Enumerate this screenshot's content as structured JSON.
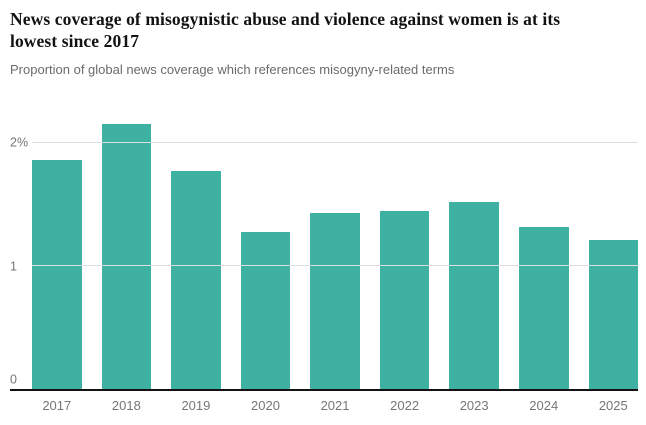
{
  "header": {
    "title": "News coverage of misogynistic abuse and violence against women is at its lowest since 2017",
    "subtitle": "Proportion of global news coverage which references misogyny-related terms"
  },
  "chart_data": {
    "type": "bar",
    "title": "News coverage of misogynistic abuse and violence against women is at its lowest since 2017",
    "subtitle": "Proportion of global news coverage which references misogyny-related terms",
    "categories": [
      "2017",
      "2018",
      "2019",
      "2020",
      "2021",
      "2022",
      "2023",
      "2024",
      "2025"
    ],
    "values": [
      1.86,
      2.15,
      1.77,
      1.28,
      1.43,
      1.45,
      1.52,
      1.32,
      1.21
    ],
    "xlabel": "",
    "ylabel": "",
    "unit": "%",
    "ylim": [
      0,
      2.3
    ],
    "yticks": [
      {
        "value": 0,
        "label": "0"
      },
      {
        "value": 1,
        "label": "1"
      },
      {
        "value": 2,
        "label": "2%"
      }
    ],
    "grid": true,
    "legend": "none",
    "bar_color": "#3fb1a2",
    "axis_color": "#121212",
    "gridline_color": "#dcdcdc",
    "tick_label_color": "#767676"
  }
}
